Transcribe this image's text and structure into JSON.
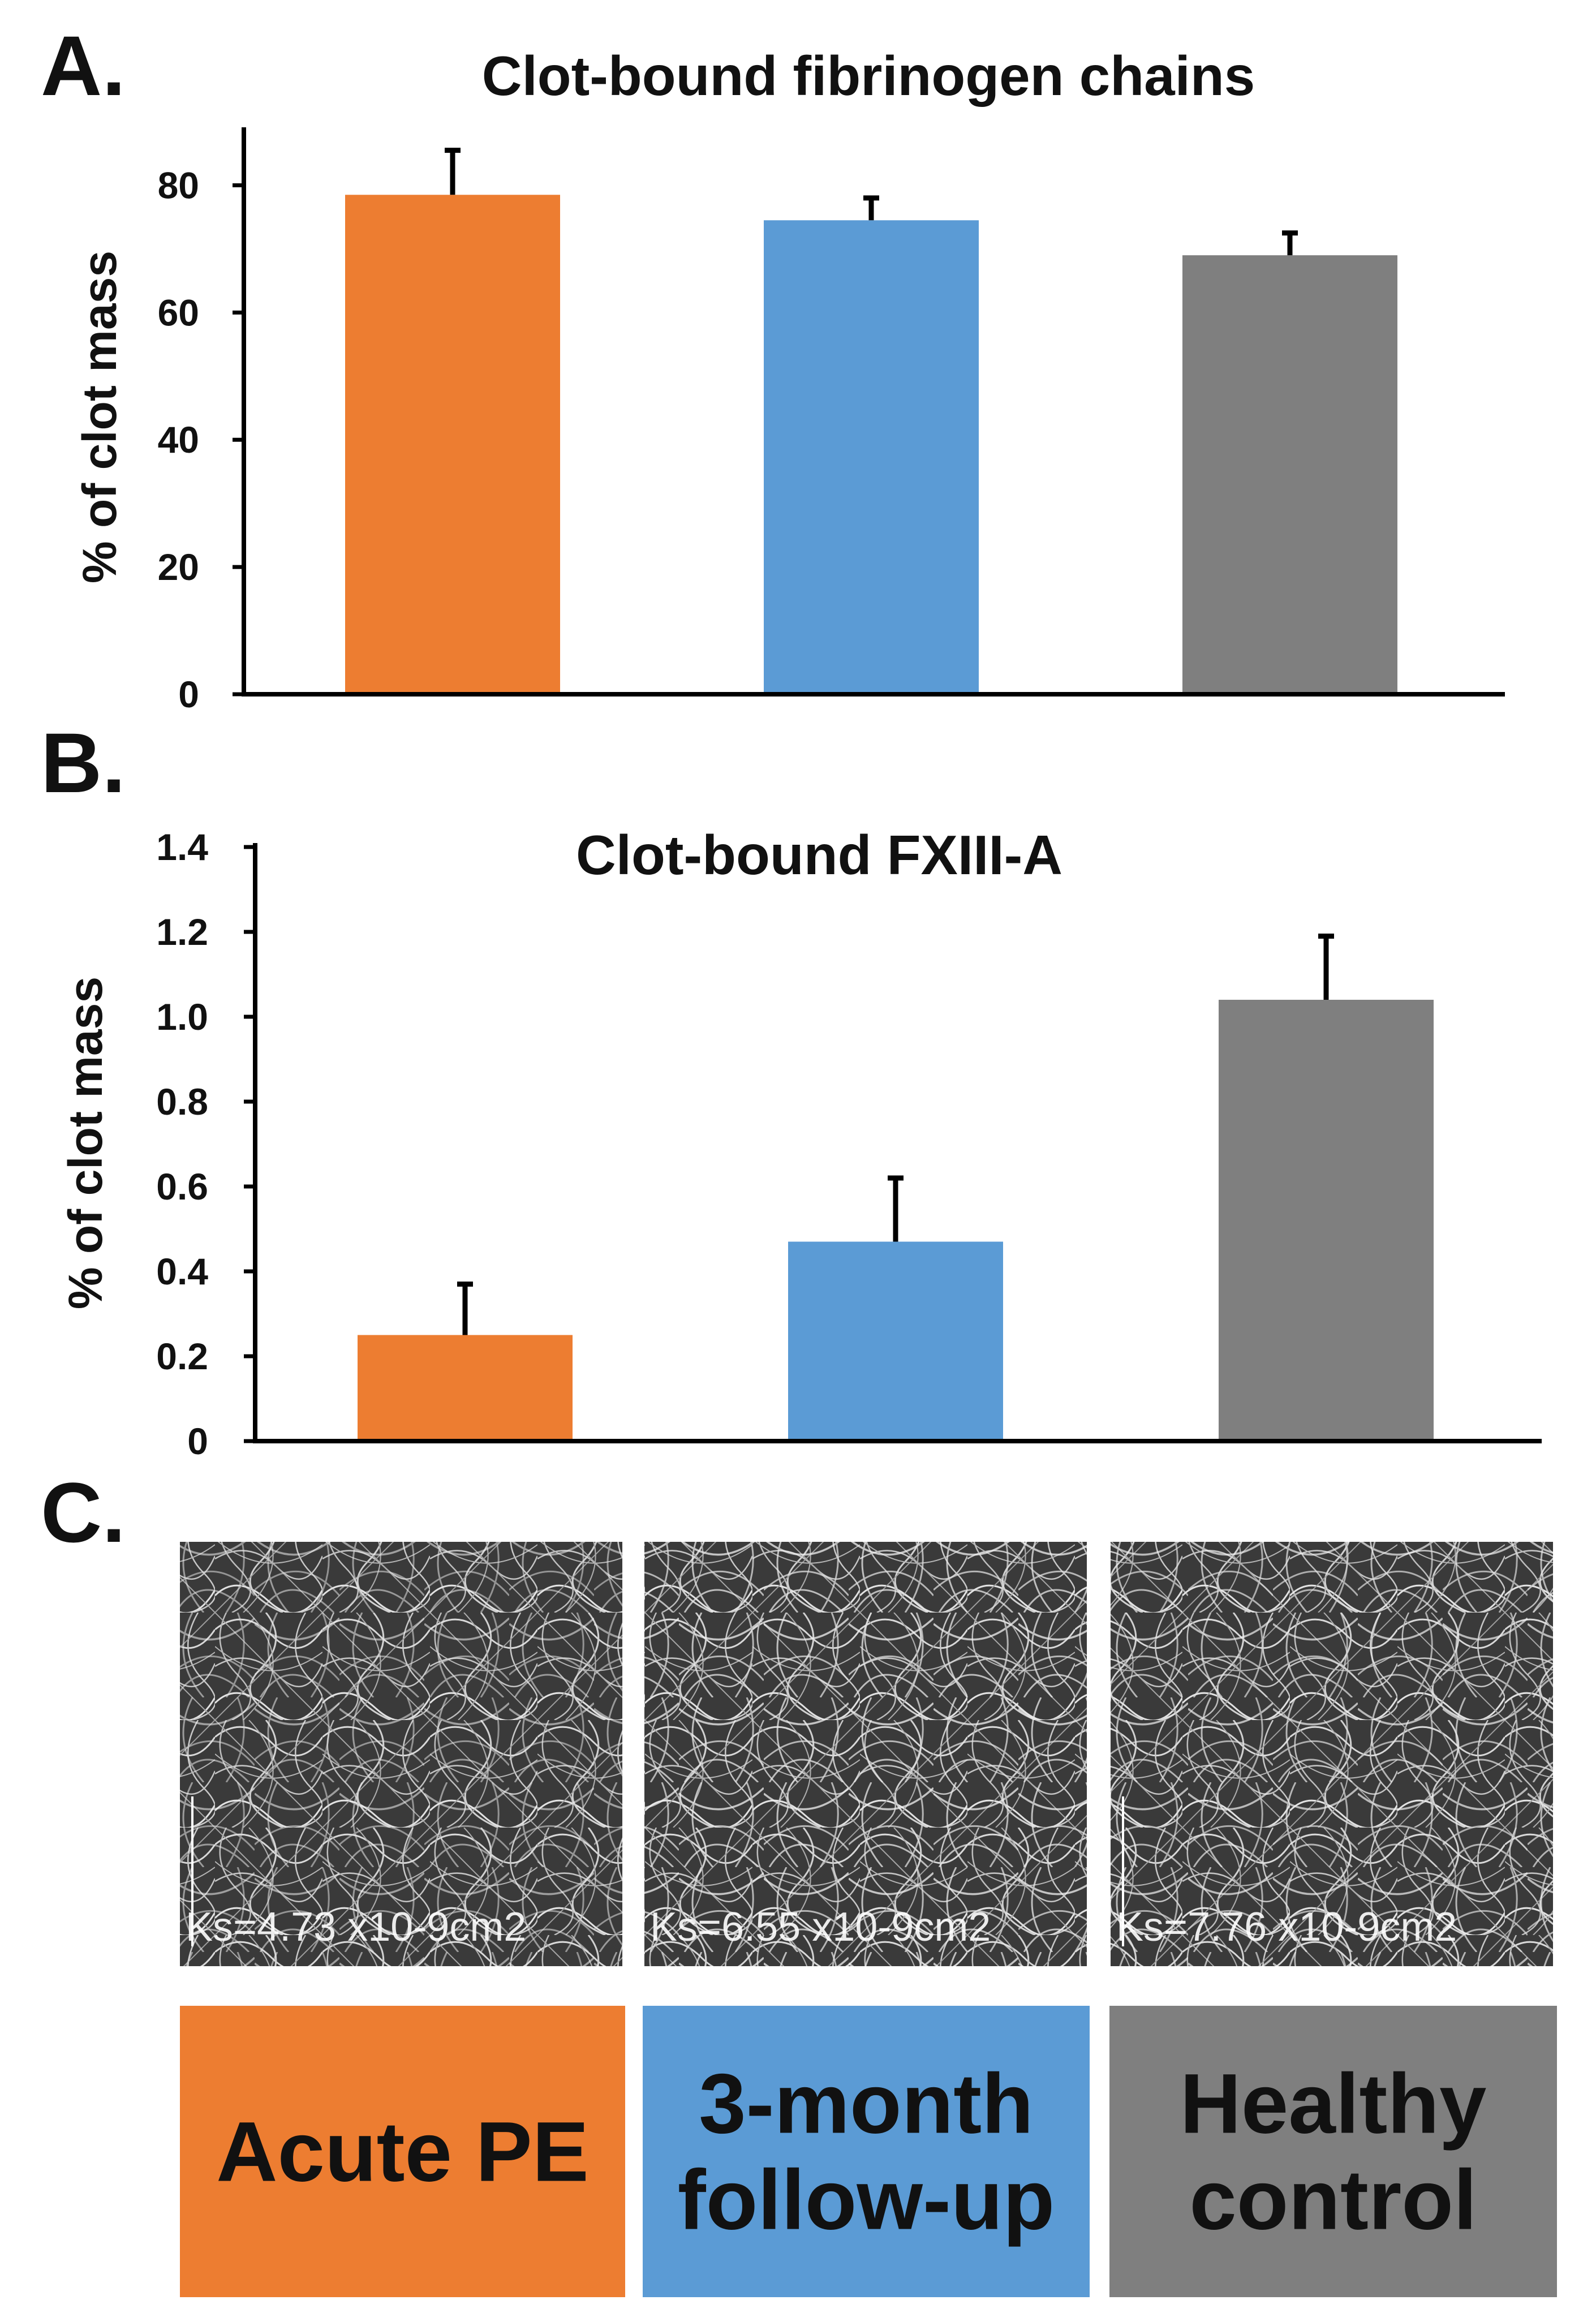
{
  "panel_labels": {
    "a": "A.",
    "b": "B.",
    "c": "C."
  },
  "colors": {
    "acute": "#ED7D31",
    "followup": "#5B9BD5",
    "healthy": "#7F7F7F"
  },
  "chart_data": [
    {
      "type": "bar",
      "title": "Clot-bound fibrinogen chains",
      "xlabel": "",
      "ylabel": "% of clot mass",
      "categories": [
        "Acute PE",
        "3-month follow-up",
        "Healthy control"
      ],
      "values": [
        78.5,
        74.5,
        69
      ],
      "errors": [
        7,
        3.5,
        3.5
      ],
      "ylim": [
        0,
        90
      ],
      "yticks": [
        0,
        20,
        40,
        60,
        80
      ],
      "ytick_labels": [
        "0",
        "20",
        "40",
        "60",
        "80"
      ]
    },
    {
      "type": "bar",
      "title": "Clot-bound FXIII-A",
      "xlabel": "",
      "ylabel": "% of clot mass",
      "categories": [
        "Acute PE",
        "3-month follow-up",
        "Healthy control"
      ],
      "values": [
        0.25,
        0.47,
        1.04
      ],
      "errors": [
        0.12,
        0.15,
        0.15
      ],
      "ylim": [
        0,
        1.4
      ],
      "yticks": [
        0,
        0.2,
        0.4,
        0.6,
        0.8,
        1.0,
        1.2,
        1.4
      ],
      "ytick_labels": [
        "0",
        "0.2",
        "0.4",
        "0.6",
        "0.8",
        "1.0",
        "1.2",
        "1.4"
      ]
    }
  ],
  "sem_images": [
    {
      "name": "acute",
      "ks_label": "Ks=4.73 x10-9cm2"
    },
    {
      "name": "followup",
      "ks_label": "Ks=6.55 x10-9cm2"
    },
    {
      "name": "healthy",
      "ks_label": "Ks=7.76 x10-9cm2"
    }
  ],
  "legend": [
    {
      "lines": [
        "Acute PE"
      ],
      "color": "#ED7D31"
    },
    {
      "lines": [
        "3-month",
        "follow-up"
      ],
      "color": "#5B9BD5"
    },
    {
      "lines": [
        "Healthy",
        "control"
      ],
      "color": "#7F7F7F"
    }
  ]
}
